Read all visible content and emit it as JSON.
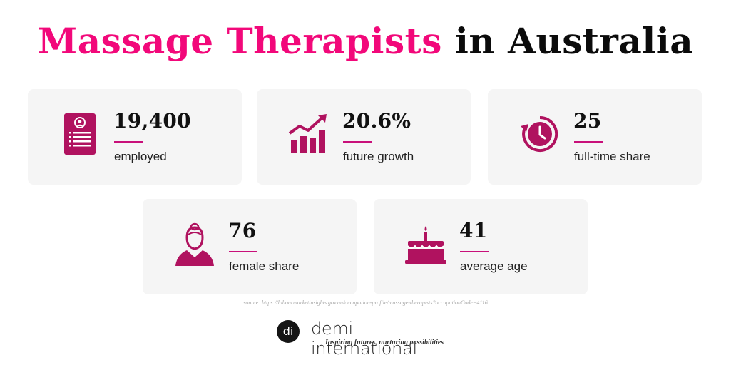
{
  "title": {
    "accent": "Massage Therapists",
    "rest": "in Australia",
    "accent_color": "#f2087a"
  },
  "stats": {
    "employed": {
      "value": "19,400",
      "label": "employed",
      "icon": "resume-icon"
    },
    "growth": {
      "value": "20.6%",
      "label": "future growth",
      "icon": "growth-chart-icon"
    },
    "fulltime": {
      "value": "25",
      "label": "full-time share",
      "icon": "clock-icon"
    },
    "female": {
      "value": "76",
      "label": "female share",
      "icon": "woman-icon"
    },
    "age": {
      "value": "41",
      "label": "average age",
      "icon": "birthday-cake-icon"
    }
  },
  "source": "source: https://labourmarketinsights.gov.au/occupation-profile/massage-therapists?occupationCode=4116",
  "brand": {
    "logo": "di",
    "name": "demi international",
    "tagline": "Inspiring futures, nurturing possibilities"
  }
}
